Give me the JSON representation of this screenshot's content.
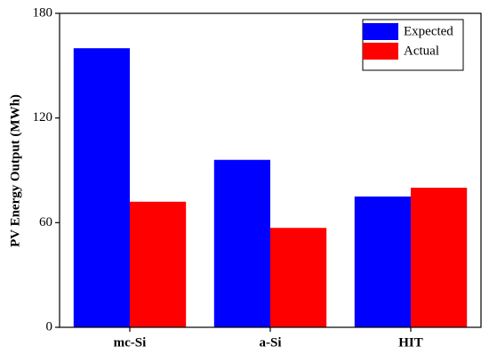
{
  "chart_data": {
    "type": "bar",
    "y_label": "PV Energy Output (MWh)",
    "categories": [
      "mc-Si",
      "a-Si",
      "HIT"
    ],
    "series": [
      {
        "name": "Expected",
        "color": "#0000ff",
        "values": [
          160,
          96,
          75
        ]
      },
      {
        "name": "Actual",
        "color": "#ff0000",
        "values": [
          72,
          57,
          80
        ]
      }
    ],
    "ylim": [
      0,
      180
    ],
    "yticks": [
      0,
      60,
      120,
      180
    ],
    "legend": "upper right"
  }
}
